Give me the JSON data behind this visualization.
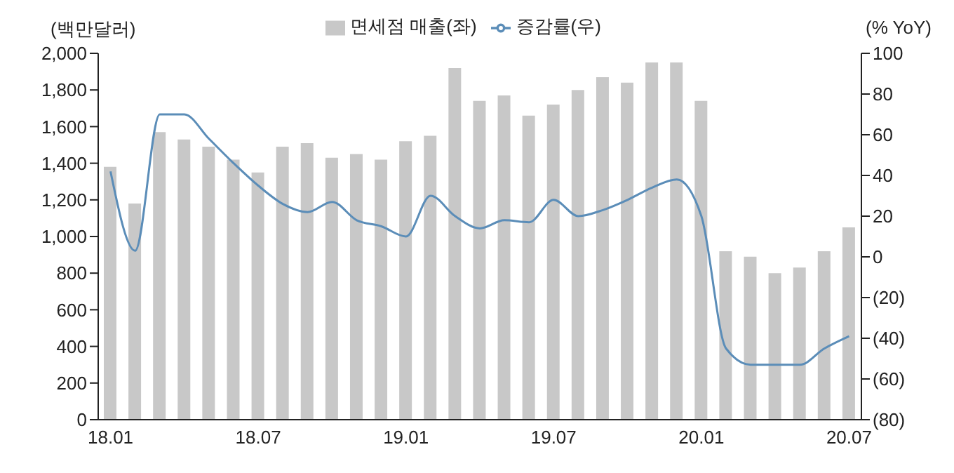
{
  "chart_data": {
    "type": "bar",
    "ylabel": "(백만달러)",
    "y2label": "(% YoY)",
    "categories": [
      "18.01",
      null,
      null,
      null,
      null,
      null,
      "18.07",
      null,
      null,
      null,
      null,
      null,
      "19.01",
      null,
      null,
      null,
      null,
      null,
      "19.07",
      null,
      null,
      null,
      null,
      null,
      "20.01",
      null,
      null,
      null,
      null,
      null,
      "20.07"
    ],
    "series": [
      {
        "name": "면세점 매출(좌)",
        "color": "#c8c8c8",
        "values": [
          1380,
          1180,
          1570,
          1530,
          1490,
          1420,
          1350,
          1490,
          1510,
          1430,
          1450,
          1420,
          1520,
          1550,
          1920,
          1740,
          1770,
          1660,
          1720,
          1800,
          1870,
          1840,
          1950,
          1950,
          1740,
          920,
          890,
          800,
          830,
          920,
          1050
        ]
      },
      {
        "name": "증감률(우)",
        "type": "line",
        "axis": "y2",
        "color": "#5b8db8",
        "values": [
          42,
          3,
          70,
          70,
          58,
          46,
          35,
          26,
          22,
          27,
          18,
          15,
          10,
          30,
          20,
          14,
          18,
          17,
          28,
          20,
          23,
          28,
          34,
          38,
          20,
          -45,
          -53,
          -53,
          -53,
          -45,
          -39
        ]
      }
    ],
    "ylim": [
      0,
      2000
    ],
    "yticks": [
      0,
      200,
      400,
      600,
      800,
      {
        "value": 1000,
        "label": "1,000"
      },
      {
        "value": 1200,
        "label": "1,200"
      },
      {
        "value": 1400,
        "label": "1,400"
      },
      {
        "value": 1600,
        "label": "1,600"
      },
      {
        "value": 1800,
        "label": "1,800"
      },
      {
        "value": 2000,
        "label": "2,000"
      }
    ],
    "y2lim": [
      -80,
      100
    ],
    "y2ticks": [
      {
        "value": -80,
        "label": "(80)"
      },
      {
        "value": -60,
        "label": "(60)"
      },
      {
        "value": -40,
        "label": "(40)"
      },
      {
        "value": -20,
        "label": "(20)"
      },
      0,
      20,
      40,
      60,
      80,
      100
    ],
    "grid": false,
    "legend": "top",
    "marker": "none",
    "line_style": "solid"
  }
}
